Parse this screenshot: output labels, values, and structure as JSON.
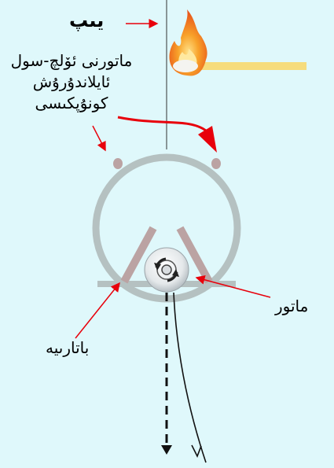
{
  "labels": {
    "thread": "يىپ",
    "switch_line1": "ماتورنى ئۆلچ-سول",
    "switch_line2": "ئايلاندۇرۇش",
    "switch_line3": "كونۇپكىسى",
    "motor": "ماتور",
    "battery": "باتارىيە"
  },
  "colors": {
    "background": "#dff8fb",
    "ring": "#b5c1c1",
    "battery": "#bba3a3",
    "arrow": "#e8000b",
    "stick": "#f6dc7c",
    "flame": "#f58a1f"
  }
}
